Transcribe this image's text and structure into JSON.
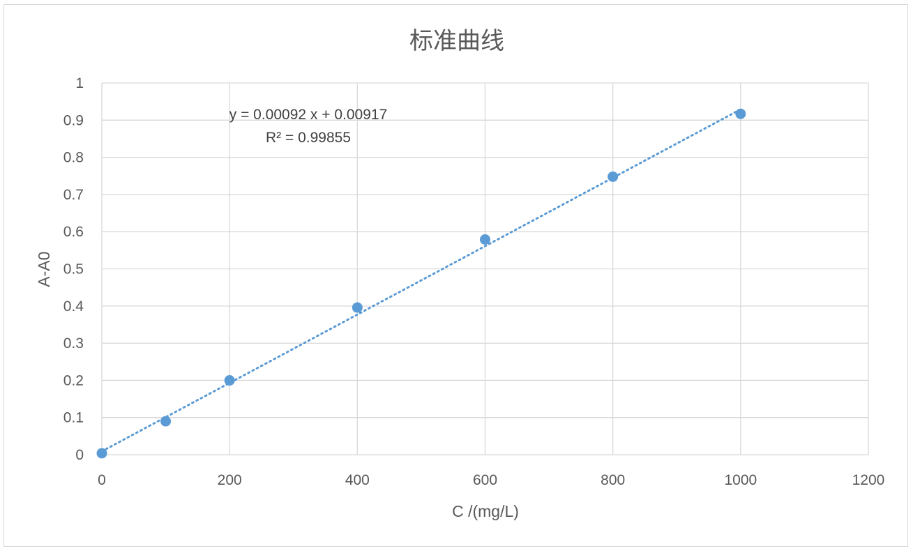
{
  "chart_data": {
    "type": "scatter",
    "title": "标准曲线",
    "xlabel": "C /(mg/L)",
    "ylabel": "A-A0",
    "xlim": [
      0,
      1200
    ],
    "ylim": [
      0,
      1
    ],
    "x_ticks": [
      "0",
      "200",
      "400",
      "600",
      "800",
      "1000",
      "1200"
    ],
    "y_ticks": [
      "0",
      "0.1",
      "0.2",
      "0.3",
      "0.4",
      "0.5",
      "0.6",
      "0.7",
      "0.8",
      "0.9",
      "1"
    ],
    "grid": true,
    "legend": "none",
    "series": [
      {
        "points": [
          {
            "x": 0,
            "y": 0.004
          },
          {
            "x": 100,
            "y": 0.09
          },
          {
            "x": 200,
            "y": 0.2
          },
          {
            "x": 400,
            "y": 0.396
          },
          {
            "x": 600,
            "y": 0.579
          },
          {
            "x": 800,
            "y": 0.748
          },
          {
            "x": 1000,
            "y": 0.917
          }
        ],
        "color": "#5b9bd5"
      }
    ],
    "trendline": {
      "type": "linear",
      "slope": 0.00092,
      "intercept": 0.00917,
      "style": "dotted",
      "color": "#5b9bd5",
      "equation_text": "y = 0.00092 x + 0.00917",
      "r2_text": "R² = 0.99855"
    }
  }
}
